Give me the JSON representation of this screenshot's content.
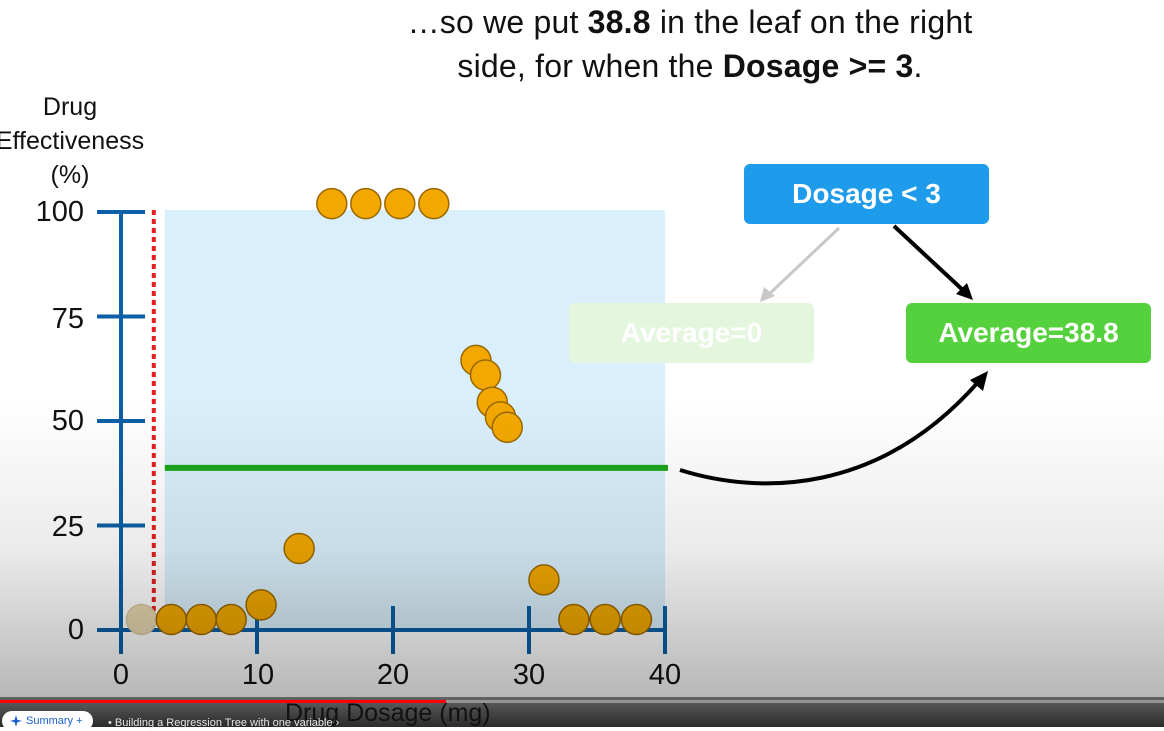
{
  "caption": {
    "line1_pre": "…so we put ",
    "line1_bold": "38.8",
    "line1_post": " in the leaf on the right",
    "line2_pre": "side, for when the ",
    "line2_bold": "Dosage >= 3",
    "line2_post": "."
  },
  "chart_data": {
    "type": "scatter",
    "ylabel_lines": [
      "Drug",
      "Effectiveness",
      "(%)"
    ],
    "xlabel": "Drug Dosage (mg)",
    "xlim": [
      0,
      40
    ],
    "ylim": [
      0,
      100
    ],
    "x_ticks": [
      "0",
      "10",
      "20",
      "30",
      "40"
    ],
    "y_ticks": [
      "0",
      "25",
      "50",
      "75",
      "100"
    ],
    "points": [
      {
        "x": 1.5,
        "y": 2.5,
        "faded": true
      },
      {
        "x": 3.7,
        "y": 2.5
      },
      {
        "x": 5.9,
        "y": 2.5
      },
      {
        "x": 8.1,
        "y": 2.5
      },
      {
        "x": 10.3,
        "y": 6
      },
      {
        "x": 13.1,
        "y": 19.5
      },
      {
        "x": 15.5,
        "y": 102
      },
      {
        "x": 18.0,
        "y": 102
      },
      {
        "x": 20.5,
        "y": 102
      },
      {
        "x": 23.0,
        "y": 102
      },
      {
        "x": 26.1,
        "y": 64.5
      },
      {
        "x": 26.8,
        "y": 61
      },
      {
        "x": 27.3,
        "y": 54.5
      },
      {
        "x": 27.9,
        "y": 51
      },
      {
        "x": 28.4,
        "y": 48.5
      },
      {
        "x": 31.1,
        "y": 12
      },
      {
        "x": 33.3,
        "y": 2.5
      },
      {
        "x": 35.6,
        "y": 2.5
      },
      {
        "x": 37.9,
        "y": 2.5
      }
    ],
    "split_threshold": 3,
    "right_leaf_average": 38.8,
    "colors": {
      "axis": "#0b5fa6",
      "point_fill": "#f2a800",
      "point_stroke": "#9a6800",
      "split_line": "#e62020",
      "average_line": "#1aa51a",
      "region": "#d9effb"
    }
  },
  "tree": {
    "root_label": "Dosage < 3",
    "left_leaf_label": "Average=0",
    "right_leaf_label": "Average=38.8",
    "colors": {
      "root": "#1e9bea",
      "left_leaf": "#e5f6df",
      "right_leaf": "#55d13d"
    }
  },
  "player": {
    "chapter_button_label": "Summary +",
    "chapter_title": "Building a Regression Tree with one variable",
    "progress_fraction": 0.383
  }
}
